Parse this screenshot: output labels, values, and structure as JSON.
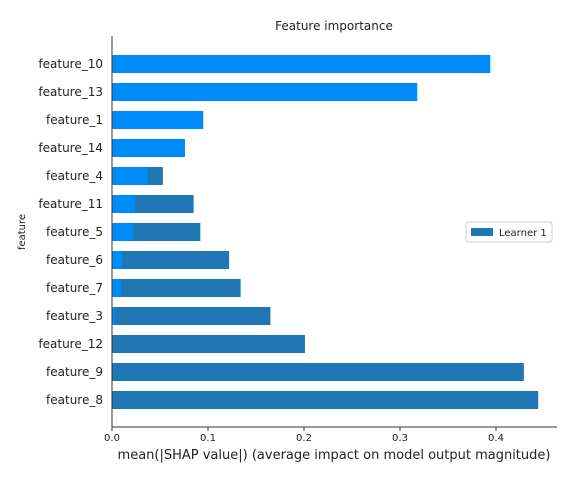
{
  "chart_data": {
    "type": "bar",
    "orientation": "horizontal",
    "title": "Feature importance",
    "xlabel": "mean(|SHAP value|) (average impact on model output magnitude)",
    "ylabel": "feature",
    "xlim": [
      0,
      0.465
    ],
    "xticks": [
      {
        "value": 0.0,
        "label": "0.0"
      },
      {
        "value": 0.1,
        "label": "0.1"
      },
      {
        "value": 0.2,
        "label": "0.2"
      },
      {
        "value": 0.3,
        "label": "0.3"
      },
      {
        "value": 0.4,
        "label": "0.4"
      }
    ],
    "categories": [
      "feature_10",
      "feature_13",
      "feature_1",
      "feature_14",
      "feature_4",
      "feature_11",
      "feature_5",
      "feature_6",
      "feature_7",
      "feature_3",
      "feature_12",
      "feature_9",
      "feature_8"
    ],
    "series": [
      {
        "name": "Learner 1",
        "color": "#1f77b4",
        "in_legend": true,
        "values": [
          0.0,
          0.0,
          0.0,
          0.0,
          0.053,
          0.085,
          0.092,
          0.122,
          0.134,
          0.165,
          0.201,
          0.429,
          0.444
        ]
      },
      {
        "color": "#008bfb",
        "in_legend": false,
        "values": [
          0.394,
          0.318,
          0.095,
          0.076,
          0.037,
          0.024,
          0.022,
          0.011,
          0.009,
          0.003,
          0.0,
          0.0,
          0.0
        ]
      }
    ],
    "legend_position": "right",
    "grid": false
  }
}
